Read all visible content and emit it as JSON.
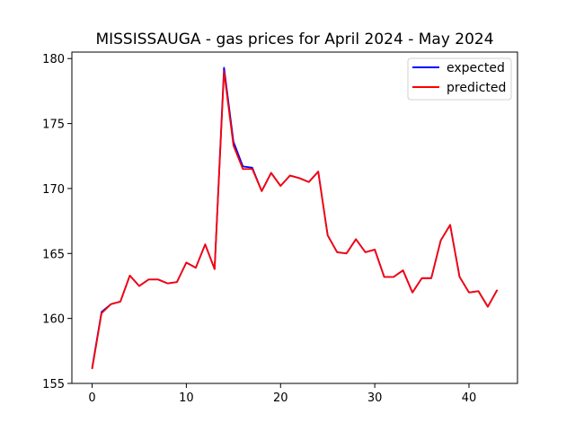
{
  "chart_data": {
    "type": "line",
    "title": "MISSISSAUGA - gas prices for April 2024 - May 2024",
    "xlabel": "",
    "ylabel": "",
    "xlim": [
      -2.15,
      45.15
    ],
    "ylim": [
      155,
      180.5
    ],
    "xticks": [
      0,
      10,
      20,
      30,
      40
    ],
    "yticks": [
      155,
      160,
      165,
      170,
      175,
      180
    ],
    "grid": false,
    "legend_position": "top-right",
    "x": [
      0,
      1,
      2,
      3,
      4,
      5,
      6,
      7,
      8,
      9,
      10,
      11,
      12,
      13,
      14,
      15,
      16,
      17,
      18,
      19,
      20,
      21,
      22,
      23,
      24,
      25,
      26,
      27,
      28,
      29,
      30,
      31,
      32,
      33,
      34,
      35,
      36,
      37,
      38,
      39,
      40,
      41,
      42,
      43
    ],
    "series": [
      {
        "name": "expected",
        "color": "#0000ff",
        "values": [
          156.2,
          160.5,
          161.1,
          161.3,
          163.3,
          162.5,
          163.0,
          163.0,
          162.7,
          162.8,
          164.3,
          163.9,
          165.7,
          163.8,
          179.3,
          173.6,
          171.7,
          171.6,
          169.8,
          171.2,
          170.2,
          171.0,
          170.8,
          170.5,
          171.3,
          166.4,
          165.1,
          165.0,
          166.1,
          165.1,
          165.3,
          163.2,
          163.2,
          163.7,
          162.0,
          163.1,
          163.1,
          166.0,
          167.2,
          163.2,
          162.0,
          162.1,
          160.9,
          162.2
        ]
      },
      {
        "name": "predicted",
        "color": "#ff0000",
        "values": [
          156.1,
          160.4,
          161.1,
          161.3,
          163.3,
          162.5,
          163.0,
          163.0,
          162.7,
          162.8,
          164.3,
          163.9,
          165.7,
          163.8,
          179.0,
          173.3,
          171.5,
          171.5,
          169.8,
          171.2,
          170.2,
          171.0,
          170.8,
          170.5,
          171.3,
          166.4,
          165.1,
          165.0,
          166.1,
          165.1,
          165.3,
          163.2,
          163.2,
          163.7,
          162.0,
          163.1,
          163.1,
          166.0,
          167.2,
          163.2,
          162.0,
          162.1,
          160.9,
          162.2
        ]
      }
    ]
  }
}
